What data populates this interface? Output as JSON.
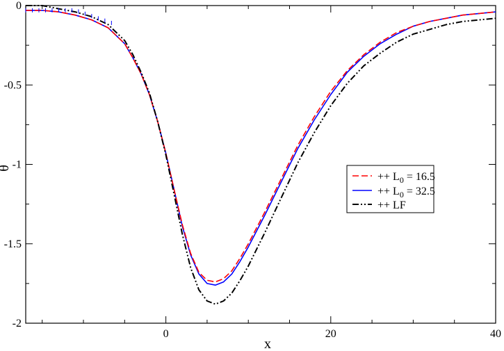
{
  "chart_data": {
    "type": "line",
    "title": "",
    "xlabel": "x",
    "ylabel": "θ",
    "xlim": [
      -17,
      40
    ],
    "ylim": [
      -2,
      0
    ],
    "x_ticks": [
      0,
      20,
      40
    ],
    "y_ticks": [
      0,
      -0.5,
      -1,
      -1.5,
      -2
    ],
    "x_tick_labels": [
      "0",
      "20",
      "40"
    ],
    "y_tick_labels": [
      "0",
      "-0.5",
      "-1",
      "-1.5",
      "-2"
    ],
    "grid": false,
    "legend_position": "right",
    "series": [
      {
        "name": "++ L0 = 16.5",
        "label_main": "++ L",
        "label_sub": "0",
        "label_tail": " = 16.5",
        "color": "#ff0000",
        "dash": "9,4",
        "width": 1.6,
        "x": [
          -17,
          -15,
          -13,
          -11,
          -9,
          -7,
          -5,
          -4,
          -3,
          -2,
          -1,
          0,
          1,
          2,
          3,
          4,
          5,
          6,
          7,
          8,
          9,
          10,
          12,
          14,
          16,
          18,
          20,
          22,
          24,
          26,
          28,
          30,
          32,
          34,
          36,
          38,
          40
        ],
        "y": [
          -0.03,
          -0.03,
          -0.04,
          -0.06,
          -0.09,
          -0.14,
          -0.24,
          -0.33,
          -0.43,
          -0.56,
          -0.73,
          -0.93,
          -1.16,
          -1.38,
          -1.56,
          -1.68,
          -1.73,
          -1.74,
          -1.72,
          -1.67,
          -1.59,
          -1.5,
          -1.3,
          -1.09,
          -0.88,
          -0.7,
          -0.54,
          -0.41,
          -0.31,
          -0.23,
          -0.17,
          -0.13,
          -0.1,
          -0.08,
          -0.06,
          -0.05,
          -0.04
        ]
      },
      {
        "name": "++ L0 = 32.5",
        "label_main": "++ L",
        "label_sub": "0",
        "label_tail": " = 32.5",
        "color": "#0000ff",
        "dash": "",
        "width": 1.6,
        "x": [
          -17,
          -15,
          -13,
          -11,
          -9,
          -7,
          -5,
          -4,
          -3,
          -2,
          -1,
          0,
          1,
          2,
          3,
          4,
          5,
          6,
          7,
          8,
          9,
          10,
          12,
          14,
          16,
          18,
          20,
          22,
          24,
          26,
          28,
          30,
          32,
          34,
          36,
          38,
          40
        ],
        "y": [
          -0.03,
          -0.03,
          -0.04,
          -0.06,
          -0.09,
          -0.14,
          -0.24,
          -0.33,
          -0.43,
          -0.56,
          -0.73,
          -0.93,
          -1.16,
          -1.39,
          -1.57,
          -1.69,
          -1.75,
          -1.76,
          -1.74,
          -1.69,
          -1.61,
          -1.52,
          -1.32,
          -1.11,
          -0.9,
          -0.72,
          -0.56,
          -0.42,
          -0.32,
          -0.24,
          -0.18,
          -0.13,
          -0.1,
          -0.08,
          -0.06,
          -0.05,
          -0.04
        ]
      },
      {
        "name": "++ LF",
        "label_main": "++ LF",
        "label_sub": "",
        "label_tail": "",
        "color": "#000000",
        "dash": "9,3,2,3,2,3",
        "width": 2,
        "x": [
          -17,
          -15,
          -13,
          -11,
          -9,
          -7,
          -5,
          -4,
          -3,
          -2,
          -1,
          0,
          1,
          2,
          3,
          4,
          5,
          6,
          7,
          8,
          9,
          10,
          12,
          14,
          16,
          18,
          20,
          22,
          24,
          26,
          28,
          30,
          32,
          34,
          36,
          38,
          40
        ],
        "y": [
          0,
          0,
          -0.02,
          -0.04,
          -0.07,
          -0.12,
          -0.22,
          -0.31,
          -0.42,
          -0.55,
          -0.73,
          -0.94,
          -1.19,
          -1.44,
          -1.65,
          -1.79,
          -1.86,
          -1.88,
          -1.86,
          -1.81,
          -1.73,
          -1.64,
          -1.43,
          -1.21,
          -0.99,
          -0.8,
          -0.63,
          -0.49,
          -0.38,
          -0.3,
          -0.23,
          -0.18,
          -0.15,
          -0.12,
          -0.1,
          -0.09,
          -0.08
        ]
      }
    ]
  }
}
